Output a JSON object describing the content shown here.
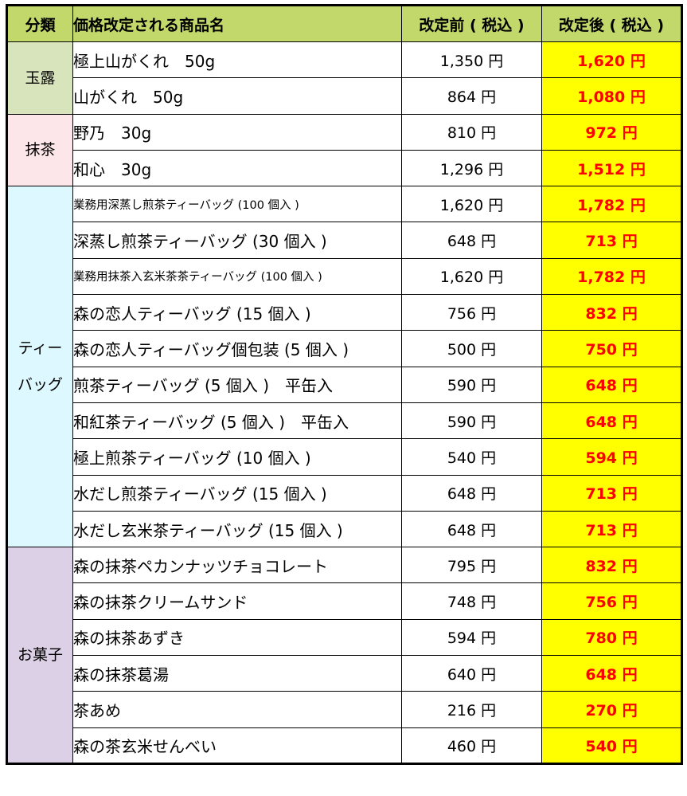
{
  "header": {
    "category": "分類",
    "product_name": "価格改定される商品名",
    "price_before": "改定前 ( 税込 )",
    "price_after": "改定後 ( 税込 )"
  },
  "category_colors": {
    "header": "#c3d86b",
    "gyokuro": "#d7e4bc",
    "matcha": "#fde6ea",
    "teabag": "#ddf8ff",
    "okashi": "#dcd0e6",
    "after_highlight": "#ffff00",
    "after_text": "#ff0000"
  },
  "categories": [
    {
      "name_lines": [
        "玉露"
      ],
      "items": [
        {
          "name": "極上山がくれ　50g",
          "before": "1,350 円",
          "after": "1,620 円"
        },
        {
          "name": "山がくれ　50g",
          "before": "864 円",
          "after": "1,080 円"
        }
      ]
    },
    {
      "name_lines": [
        "抹茶"
      ],
      "items": [
        {
          "name": "野乃　30g",
          "before": "810 円",
          "after": "972 円"
        },
        {
          "name": "和心　30g",
          "before": "1,296 円",
          "after": "1,512 円"
        }
      ]
    },
    {
      "name_lines": [
        "ティー",
        "バッグ"
      ],
      "items": [
        {
          "name": "業務用深蒸し煎茶ティーバッグ (100 個入 )",
          "before": "1,620 円",
          "after": "1,782 円",
          "small": true
        },
        {
          "name": "深蒸し煎茶ティーバッグ (30 個入 )",
          "before": "648 円",
          "after": "713 円"
        },
        {
          "name": "業務用抹茶入玄米茶茶ティーバッグ (100 個入 )",
          "before": "1,620 円",
          "after": "1,782 円",
          "small": true
        },
        {
          "name": "森の恋人ティーバッグ (15 個入 )",
          "before": "756 円",
          "after": "832 円"
        },
        {
          "name": "森の恋人ティーバッグ個包装 (5 個入 )",
          "before": "500 円",
          "after": "750 円"
        },
        {
          "name": "煎茶ティーバッグ (5 個入 )　平缶入",
          "before": "590 円",
          "after": "648 円"
        },
        {
          "name": "和紅茶ティーバッグ (5 個入 )　平缶入",
          "before": "590 円",
          "after": "648 円"
        },
        {
          "name": "極上煎茶ティーバッグ (10 個入 )",
          "before": "540 円",
          "after": "594 円"
        },
        {
          "name": "水だし煎茶ティーバッグ (15 個入 )",
          "before": "648 円",
          "after": "713 円"
        },
        {
          "name": "水だし玄米茶ティーバッグ (15 個入 )",
          "before": "648 円",
          "after": "713 円"
        }
      ]
    },
    {
      "name_lines": [
        "お菓子"
      ],
      "items": [
        {
          "name": "森の抹茶ペカンナッツチョコレート",
          "before": "795 円",
          "after": "832 円"
        },
        {
          "name": "森の抹茶クリームサンド",
          "before": "748 円",
          "after": "756 円"
        },
        {
          "name": "森の抹茶あずき",
          "before": "594 円",
          "after": "780 円"
        },
        {
          "name": "森の抹茶葛湯",
          "before": "640 円",
          "after": "648 円"
        },
        {
          "name": "茶あめ",
          "before": "216 円",
          "after": "270 円"
        },
        {
          "name": "森の茶玄米せんべい",
          "before": "460 円",
          "after": "540 円"
        }
      ]
    }
  ]
}
